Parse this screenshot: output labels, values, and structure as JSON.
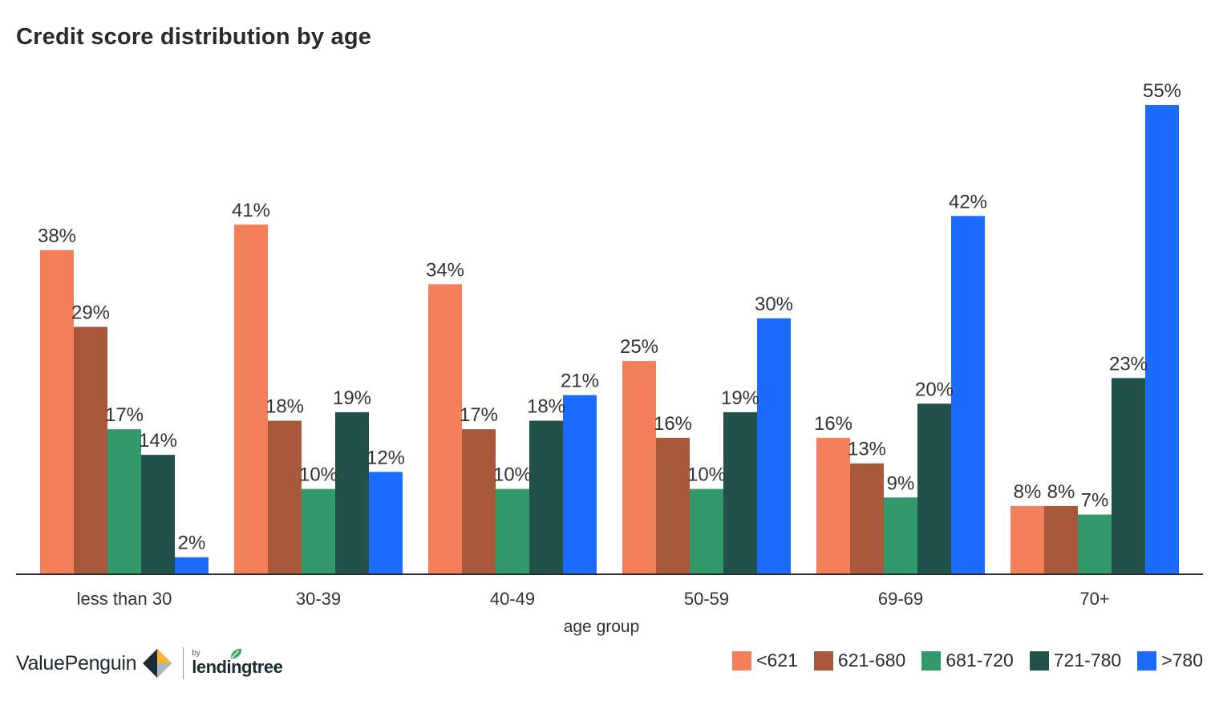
{
  "title": "Credit score distribution by age",
  "chart_data": {
    "type": "bar",
    "title": "Credit score distribution by age",
    "xlabel": "age group",
    "ylabel": "",
    "categories": [
      "less than 30",
      "30-39",
      "40-49",
      "50-59",
      "69-69",
      "70+"
    ],
    "series": [
      {
        "name": "<621",
        "color": "#f47f5b",
        "values": [
          38,
          41,
          34,
          25,
          16,
          8
        ],
        "labels": [
          "38%",
          "41%",
          "34%",
          "25%",
          "16%",
          "8%"
        ]
      },
      {
        "name": "621-680",
        "color": "#a8583b",
        "values": [
          29,
          18,
          17,
          16,
          13,
          8
        ],
        "labels": [
          "29%",
          "18%",
          "17%",
          "16%",
          "13%",
          "8%"
        ]
      },
      {
        "name": "681-720",
        "color": "#329a6a",
        "values": [
          17,
          10,
          10,
          10,
          9,
          7
        ],
        "labels": [
          "17%",
          "10%",
          "10%",
          "10%",
          "9%",
          "7%"
        ]
      },
      {
        "name": "721-780",
        "color": "#22504a",
        "values": [
          14,
          19,
          18,
          19,
          20,
          23
        ],
        "labels": [
          "14%",
          "19%",
          "18%",
          "19%",
          "20%",
          "23%"
        ]
      },
      {
        "name": ">780",
        "color": "#1d6cff",
        "values": [
          2,
          12,
          21,
          30,
          42,
          55
        ],
        "labels": [
          "2%",
          "12%",
          "21%",
          "30%",
          "42%",
          "55%"
        ]
      }
    ],
    "ylim": [
      0,
      55
    ],
    "grid": false,
    "legend": "bottom-right",
    "data_labels": true
  },
  "brand": {
    "name": "ValuePenguin",
    "by": "by",
    "partner": "lendingtree"
  }
}
